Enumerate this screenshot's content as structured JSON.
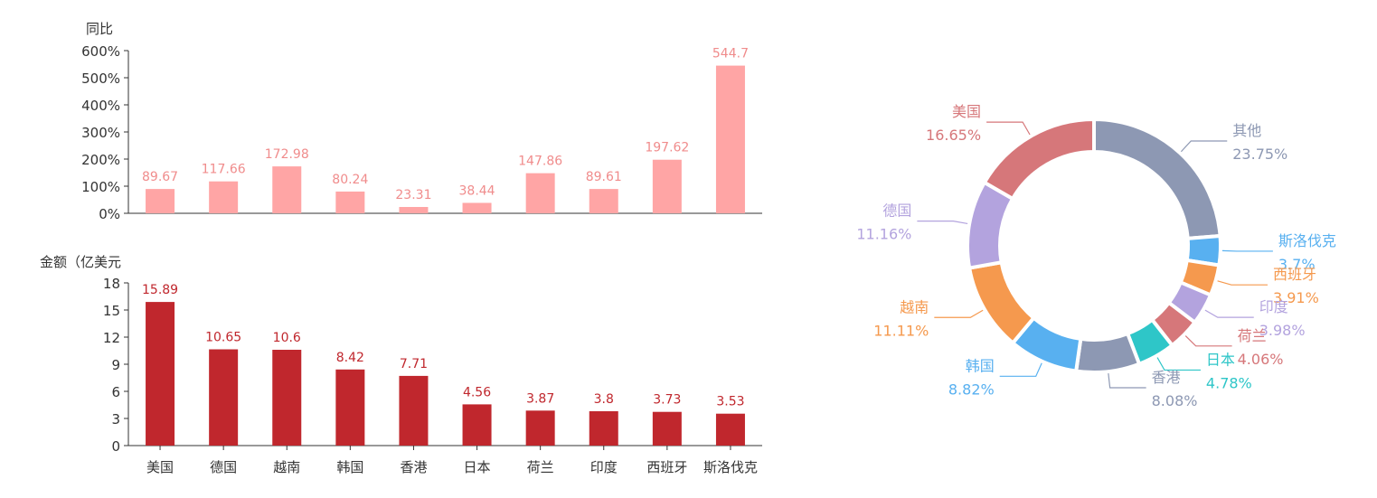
{
  "colors": {
    "yoy_bar": "#ffa5a5",
    "yoy_label": "#f08c8c",
    "amount_bar": "#c0272d",
    "amount_label": "#c0272d",
    "axis": "#333333"
  },
  "chart_data": [
    {
      "type": "bar",
      "ylabel": "同比",
      "categories": [
        "美国",
        "德国",
        "越南",
        "韩国",
        "香港",
        "日本",
        "荷兰",
        "印度",
        "西班牙",
        "斯洛伐克"
      ],
      "values": [
        89.67,
        117.66,
        172.98,
        80.24,
        23.31,
        38.44,
        147.86,
        89.61,
        197.62,
        544.7
      ],
      "value_labels": [
        "89.67",
        "117.66",
        "172.98",
        "80.24",
        "23.31",
        "38.44",
        "147.86",
        "89.61",
        "197.62",
        "544.7"
      ],
      "ylim": [
        0,
        600
      ],
      "yticks": [
        "0%",
        "100%",
        "200%",
        "300%",
        "400%",
        "500%",
        "600%"
      ],
      "grid": false
    },
    {
      "type": "bar",
      "ylabel": "金额（亿美元",
      "categories": [
        "美国",
        "德国",
        "越南",
        "韩国",
        "香港",
        "日本",
        "荷兰",
        "印度",
        "西班牙",
        "斯洛伐克"
      ],
      "values": [
        15.89,
        10.65,
        10.6,
        8.42,
        7.71,
        4.56,
        3.87,
        3.8,
        3.73,
        3.53
      ],
      "value_labels": [
        "15.89",
        "10.65",
        "10.6",
        "8.42",
        "7.71",
        "4.56",
        "3.87",
        "3.8",
        "3.73",
        "3.53"
      ],
      "ylim": [
        0,
        18
      ],
      "yticks": [
        "0",
        "3",
        "6",
        "9",
        "12",
        "15",
        "18"
      ],
      "grid": false
    },
    {
      "type": "pie",
      "donut": true,
      "slices": [
        {
          "name": "其他",
          "value": 23.75,
          "label": "23.75%",
          "color": "#8d98b3"
        },
        {
          "name": "斯洛伐克",
          "value": 3.7,
          "label": "3.7%",
          "color": "#58b0f0"
        },
        {
          "name": "西班牙",
          "value": 3.91,
          "label": "3.91%",
          "color": "#f5994e"
        },
        {
          "name": "印度",
          "value": 3.98,
          "label": "3.98%",
          "color": "#b3a3de"
        },
        {
          "name": "荷兰",
          "value": 4.06,
          "label": "4.06%",
          "color": "#d6777a"
        },
        {
          "name": "日本",
          "value": 4.78,
          "label": "4.78%",
          "color": "#2ec6c8"
        },
        {
          "name": "香港",
          "value": 8.08,
          "label": "8.08%",
          "color": "#8d98b3"
        },
        {
          "name": "韩国",
          "value": 8.82,
          "label": "8.82%",
          "color": "#58b0f0"
        },
        {
          "name": "越南",
          "value": 11.11,
          "label": "11.11%",
          "color": "#f5994e"
        },
        {
          "name": "德国",
          "value": 11.16,
          "label": "11.16%",
          "color": "#b3a3de"
        },
        {
          "name": "美国",
          "value": 16.65,
          "label": "16.65%",
          "color": "#d6777a"
        }
      ]
    }
  ]
}
